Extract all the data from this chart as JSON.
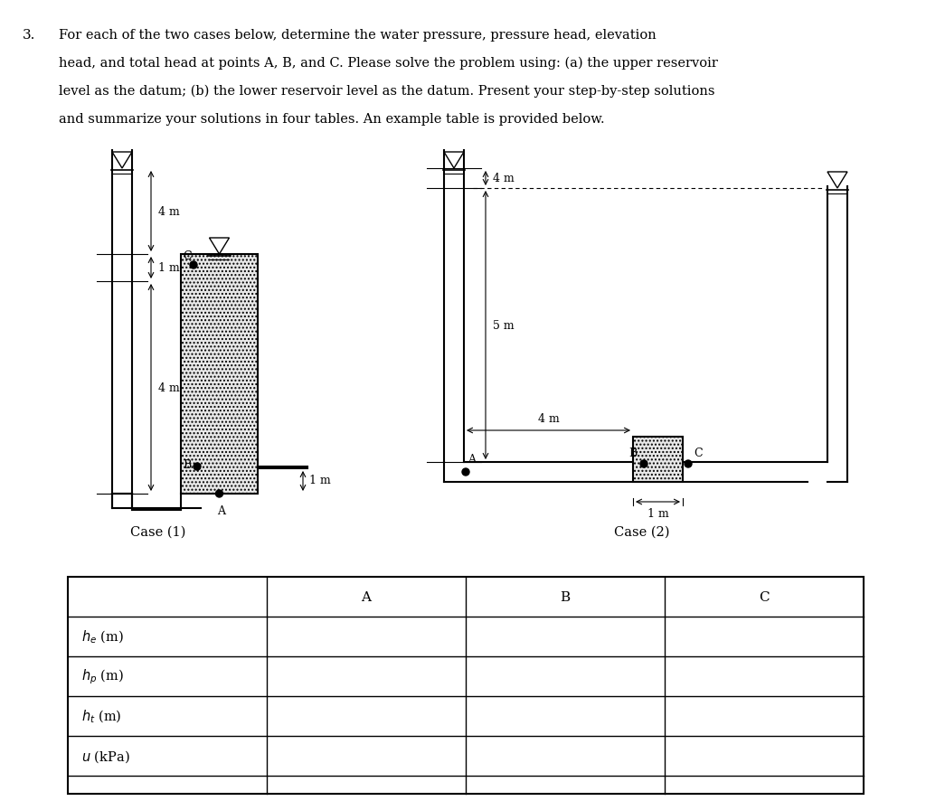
{
  "title_number": "3.",
  "title_text": "For each of the two cases below, determine the water pressure, pressure head, elevation\nhead, and total head at points A, B, and C. Please solve the problem using: (a) the upper reservoir\nlevel as the datum; (b) the lower reservoir level as the datum. Present your step-by-step solutions\nand summarize your solutions in four tables. An example table is provided below.",
  "case1_label": "Case (1)",
  "case2_label": "Case (2)",
  "table_header": [
    "",
    "A",
    "B",
    "C"
  ],
  "table_rows": [
    "$h_e$ (m)",
    "$h_p$ (m)",
    "$h_t$ (m)",
    "$u$ (kPa)"
  ],
  "bg_color": "#ffffff"
}
